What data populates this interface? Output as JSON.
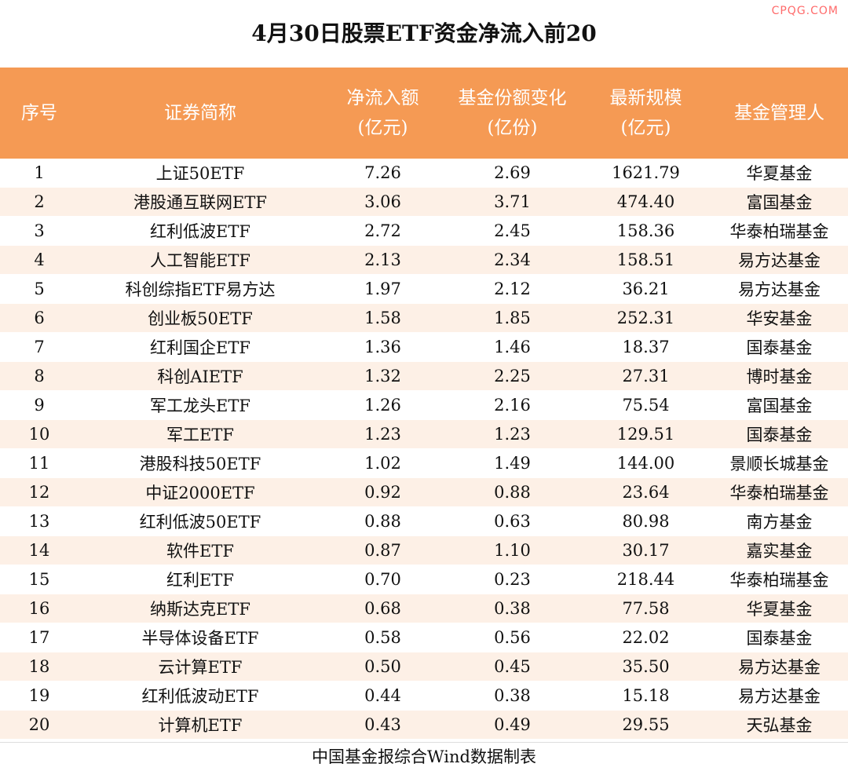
{
  "watermark": "CPQG.COM",
  "title": "4月30日股票ETF资金净流入前20",
  "headers": {
    "idx": "序号",
    "name": "证券简称",
    "flow_line1": "净流入额",
    "flow_line2": "(亿元)",
    "share_line1": "基金份额变化",
    "share_line2": "(亿份)",
    "size_line1": "最新规模",
    "size_line2": "(亿元)",
    "mgr": "基金管理人"
  },
  "rows": [
    {
      "idx": "1",
      "name": "上证50ETF",
      "flow": "7.26",
      "share": "2.69",
      "size": "1621.79",
      "mgr": "华夏基金"
    },
    {
      "idx": "2",
      "name": "港股通互联网ETF",
      "flow": "3.06",
      "share": "3.71",
      "size": "474.40",
      "mgr": "富国基金"
    },
    {
      "idx": "3",
      "name": "红利低波ETF",
      "flow": "2.72",
      "share": "2.45",
      "size": "158.36",
      "mgr": "华泰柏瑞基金"
    },
    {
      "idx": "4",
      "name": "人工智能ETF",
      "flow": "2.13",
      "share": "2.34",
      "size": "158.51",
      "mgr": "易方达基金"
    },
    {
      "idx": "5",
      "name": "科创综指ETF易方达",
      "flow": "1.97",
      "share": "2.12",
      "size": "36.21",
      "mgr": "易方达基金"
    },
    {
      "idx": "6",
      "name": "创业板50ETF",
      "flow": "1.58",
      "share": "1.85",
      "size": "252.31",
      "mgr": "华安基金"
    },
    {
      "idx": "7",
      "name": "红利国企ETF",
      "flow": "1.36",
      "share": "1.46",
      "size": "18.37",
      "mgr": "国泰基金"
    },
    {
      "idx": "8",
      "name": "科创AIETF",
      "flow": "1.32",
      "share": "2.25",
      "size": "27.31",
      "mgr": "博时基金"
    },
    {
      "idx": "9",
      "name": "军工龙头ETF",
      "flow": "1.26",
      "share": "2.16",
      "size": "75.54",
      "mgr": "富国基金"
    },
    {
      "idx": "10",
      "name": "军工ETF",
      "flow": "1.23",
      "share": "1.23",
      "size": "129.51",
      "mgr": "国泰基金"
    },
    {
      "idx": "11",
      "name": "港股科技50ETF",
      "flow": "1.02",
      "share": "1.49",
      "size": "144.00",
      "mgr": "景顺长城基金"
    },
    {
      "idx": "12",
      "name": "中证2000ETF",
      "flow": "0.92",
      "share": "0.88",
      "size": "23.64",
      "mgr": "华泰柏瑞基金"
    },
    {
      "idx": "13",
      "name": "红利低波50ETF",
      "flow": "0.88",
      "share": "0.63",
      "size": "80.98",
      "mgr": "南方基金"
    },
    {
      "idx": "14",
      "name": "软件ETF",
      "flow": "0.87",
      "share": "1.10",
      "size": "30.17",
      "mgr": "嘉实基金"
    },
    {
      "idx": "15",
      "name": "红利ETF",
      "flow": "0.70",
      "share": "0.23",
      "size": "218.44",
      "mgr": "华泰柏瑞基金"
    },
    {
      "idx": "16",
      "name": "纳斯达克ETF",
      "flow": "0.68",
      "share": "0.38",
      "size": "77.58",
      "mgr": "华夏基金"
    },
    {
      "idx": "17",
      "name": "半导体设备ETF",
      "flow": "0.58",
      "share": "0.56",
      "size": "22.02",
      "mgr": "国泰基金"
    },
    {
      "idx": "18",
      "name": "云计算ETF",
      "flow": "0.50",
      "share": "0.45",
      "size": "35.50",
      "mgr": "易方达基金"
    },
    {
      "idx": "19",
      "name": "红利低波动ETF",
      "flow": "0.44",
      "share": "0.38",
      "size": "15.18",
      "mgr": "易方达基金"
    },
    {
      "idx": "20",
      "name": "计算机ETF",
      "flow": "0.43",
      "share": "0.49",
      "size": "29.55",
      "mgr": "天弘基金"
    }
  ],
  "footer": "中国基金报综合Wind数据制表"
}
